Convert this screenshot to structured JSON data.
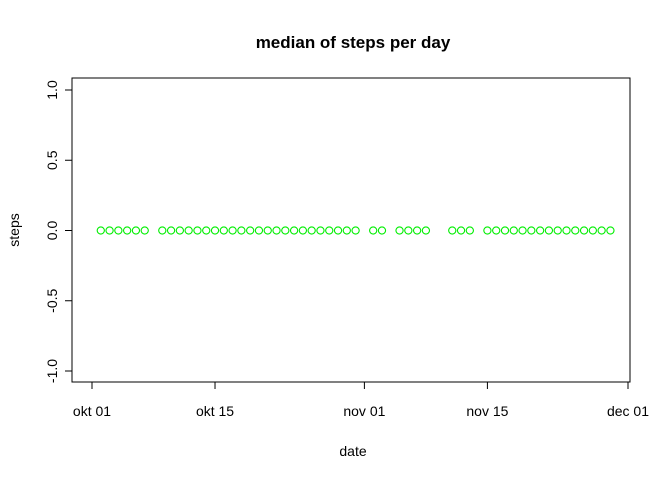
{
  "chart_data": {
    "type": "scatter",
    "title": "median of steps per day",
    "xlabel": "date",
    "ylabel": "steps",
    "xlim": [
      "2012-09-29",
      "2012-12-01"
    ],
    "ylim": [
      -1.0,
      1.0
    ],
    "grid": false,
    "x_ticks": [
      {
        "value": "2012-10-01",
        "label": "okt 01"
      },
      {
        "value": "2012-10-15",
        "label": "okt 15"
      },
      {
        "value": "2012-11-01",
        "label": "nov 01"
      },
      {
        "value": "2012-11-15",
        "label": "nov 15"
      },
      {
        "value": "2012-12-01",
        "label": "dec 01"
      }
    ],
    "y_ticks": [
      {
        "value": -1.0,
        "label": "-1.0"
      },
      {
        "value": -0.5,
        "label": "-0.5"
      },
      {
        "value": 0.0,
        "label": "0.0"
      },
      {
        "value": 0.5,
        "label": "0.5"
      },
      {
        "value": 1.0,
        "label": "1.0"
      }
    ],
    "series": [
      {
        "color": "#00ee00",
        "marker": "open-circle",
        "points": [
          {
            "x": "2012-10-02",
            "y": 0
          },
          {
            "x": "2012-10-03",
            "y": 0
          },
          {
            "x": "2012-10-04",
            "y": 0
          },
          {
            "x": "2012-10-05",
            "y": 0
          },
          {
            "x": "2012-10-06",
            "y": 0
          },
          {
            "x": "2012-10-07",
            "y": 0
          },
          {
            "x": "2012-10-09",
            "y": 0
          },
          {
            "x": "2012-10-10",
            "y": 0
          },
          {
            "x": "2012-10-11",
            "y": 0
          },
          {
            "x": "2012-10-12",
            "y": 0
          },
          {
            "x": "2012-10-13",
            "y": 0
          },
          {
            "x": "2012-10-14",
            "y": 0
          },
          {
            "x": "2012-10-15",
            "y": 0
          },
          {
            "x": "2012-10-16",
            "y": 0
          },
          {
            "x": "2012-10-17",
            "y": 0
          },
          {
            "x": "2012-10-18",
            "y": 0
          },
          {
            "x": "2012-10-19",
            "y": 0
          },
          {
            "x": "2012-10-20",
            "y": 0
          },
          {
            "x": "2012-10-21",
            "y": 0
          },
          {
            "x": "2012-10-22",
            "y": 0
          },
          {
            "x": "2012-10-23",
            "y": 0
          },
          {
            "x": "2012-10-24",
            "y": 0
          },
          {
            "x": "2012-10-25",
            "y": 0
          },
          {
            "x": "2012-10-26",
            "y": 0
          },
          {
            "x": "2012-10-27",
            "y": 0
          },
          {
            "x": "2012-10-28",
            "y": 0
          },
          {
            "x": "2012-10-29",
            "y": 0
          },
          {
            "x": "2012-10-30",
            "y": 0
          },
          {
            "x": "2012-10-31",
            "y": 0
          },
          {
            "x": "2012-11-02",
            "y": 0
          },
          {
            "x": "2012-11-03",
            "y": 0
          },
          {
            "x": "2012-11-05",
            "y": 0
          },
          {
            "x": "2012-11-06",
            "y": 0
          },
          {
            "x": "2012-11-07",
            "y": 0
          },
          {
            "x": "2012-11-08",
            "y": 0
          },
          {
            "x": "2012-11-11",
            "y": 0
          },
          {
            "x": "2012-11-12",
            "y": 0
          },
          {
            "x": "2012-11-13",
            "y": 0
          },
          {
            "x": "2012-11-15",
            "y": 0
          },
          {
            "x": "2012-11-16",
            "y": 0
          },
          {
            "x": "2012-11-17",
            "y": 0
          },
          {
            "x": "2012-11-18",
            "y": 0
          },
          {
            "x": "2012-11-19",
            "y": 0
          },
          {
            "x": "2012-11-20",
            "y": 0
          },
          {
            "x": "2012-11-21",
            "y": 0
          },
          {
            "x": "2012-11-22",
            "y": 0
          },
          {
            "x": "2012-11-23",
            "y": 0
          },
          {
            "x": "2012-11-24",
            "y": 0
          },
          {
            "x": "2012-11-25",
            "y": 0
          },
          {
            "x": "2012-11-26",
            "y": 0
          },
          {
            "x": "2012-11-27",
            "y": 0
          },
          {
            "x": "2012-11-28",
            "y": 0
          },
          {
            "x": "2012-11-29",
            "y": 0
          }
        ]
      }
    ]
  }
}
